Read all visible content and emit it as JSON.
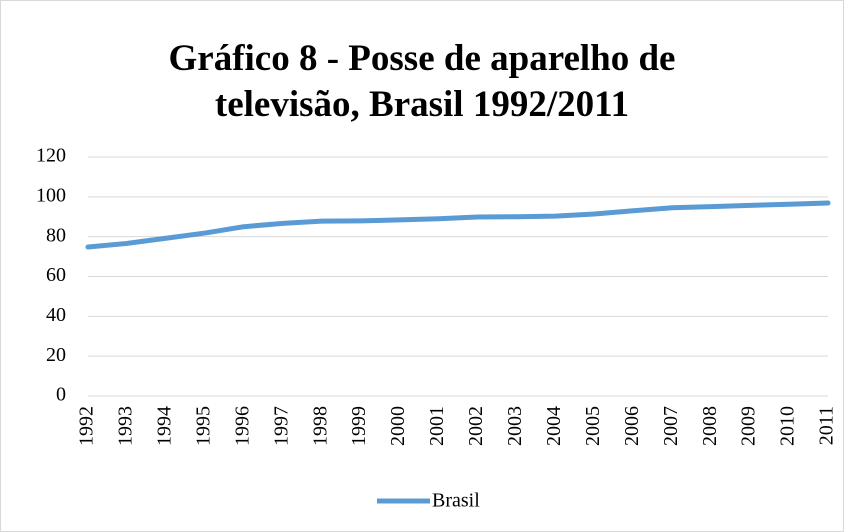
{
  "chart_data": {
    "type": "line",
    "title": "Gráfico 8 - Posse de aparelho de televisão, Brasil 1992/2011",
    "categories": [
      "1992",
      "1993",
      "1994",
      "1995",
      "1996",
      "1997",
      "1998",
      "1999",
      "2000",
      "2001",
      "2002",
      "2003",
      "2004",
      "2005",
      "2006",
      "2007",
      "2008",
      "2009",
      "2010",
      "2011"
    ],
    "series": [
      {
        "name": "Brasil",
        "color": "#5b9bd5",
        "values": [
          74.8,
          76.6,
          79.2,
          81.8,
          85.0,
          86.7,
          87.8,
          87.9,
          88.4,
          89.0,
          89.9,
          90.0,
          90.3,
          91.4,
          93.0,
          94.5,
          95.1,
          95.7,
          96.3,
          96.9
        ]
      }
    ],
    "ylim": [
      0,
      120
    ],
    "yticks": [
      0,
      20,
      40,
      60,
      80,
      100,
      120
    ],
    "grid": true,
    "legend": "bottom"
  }
}
